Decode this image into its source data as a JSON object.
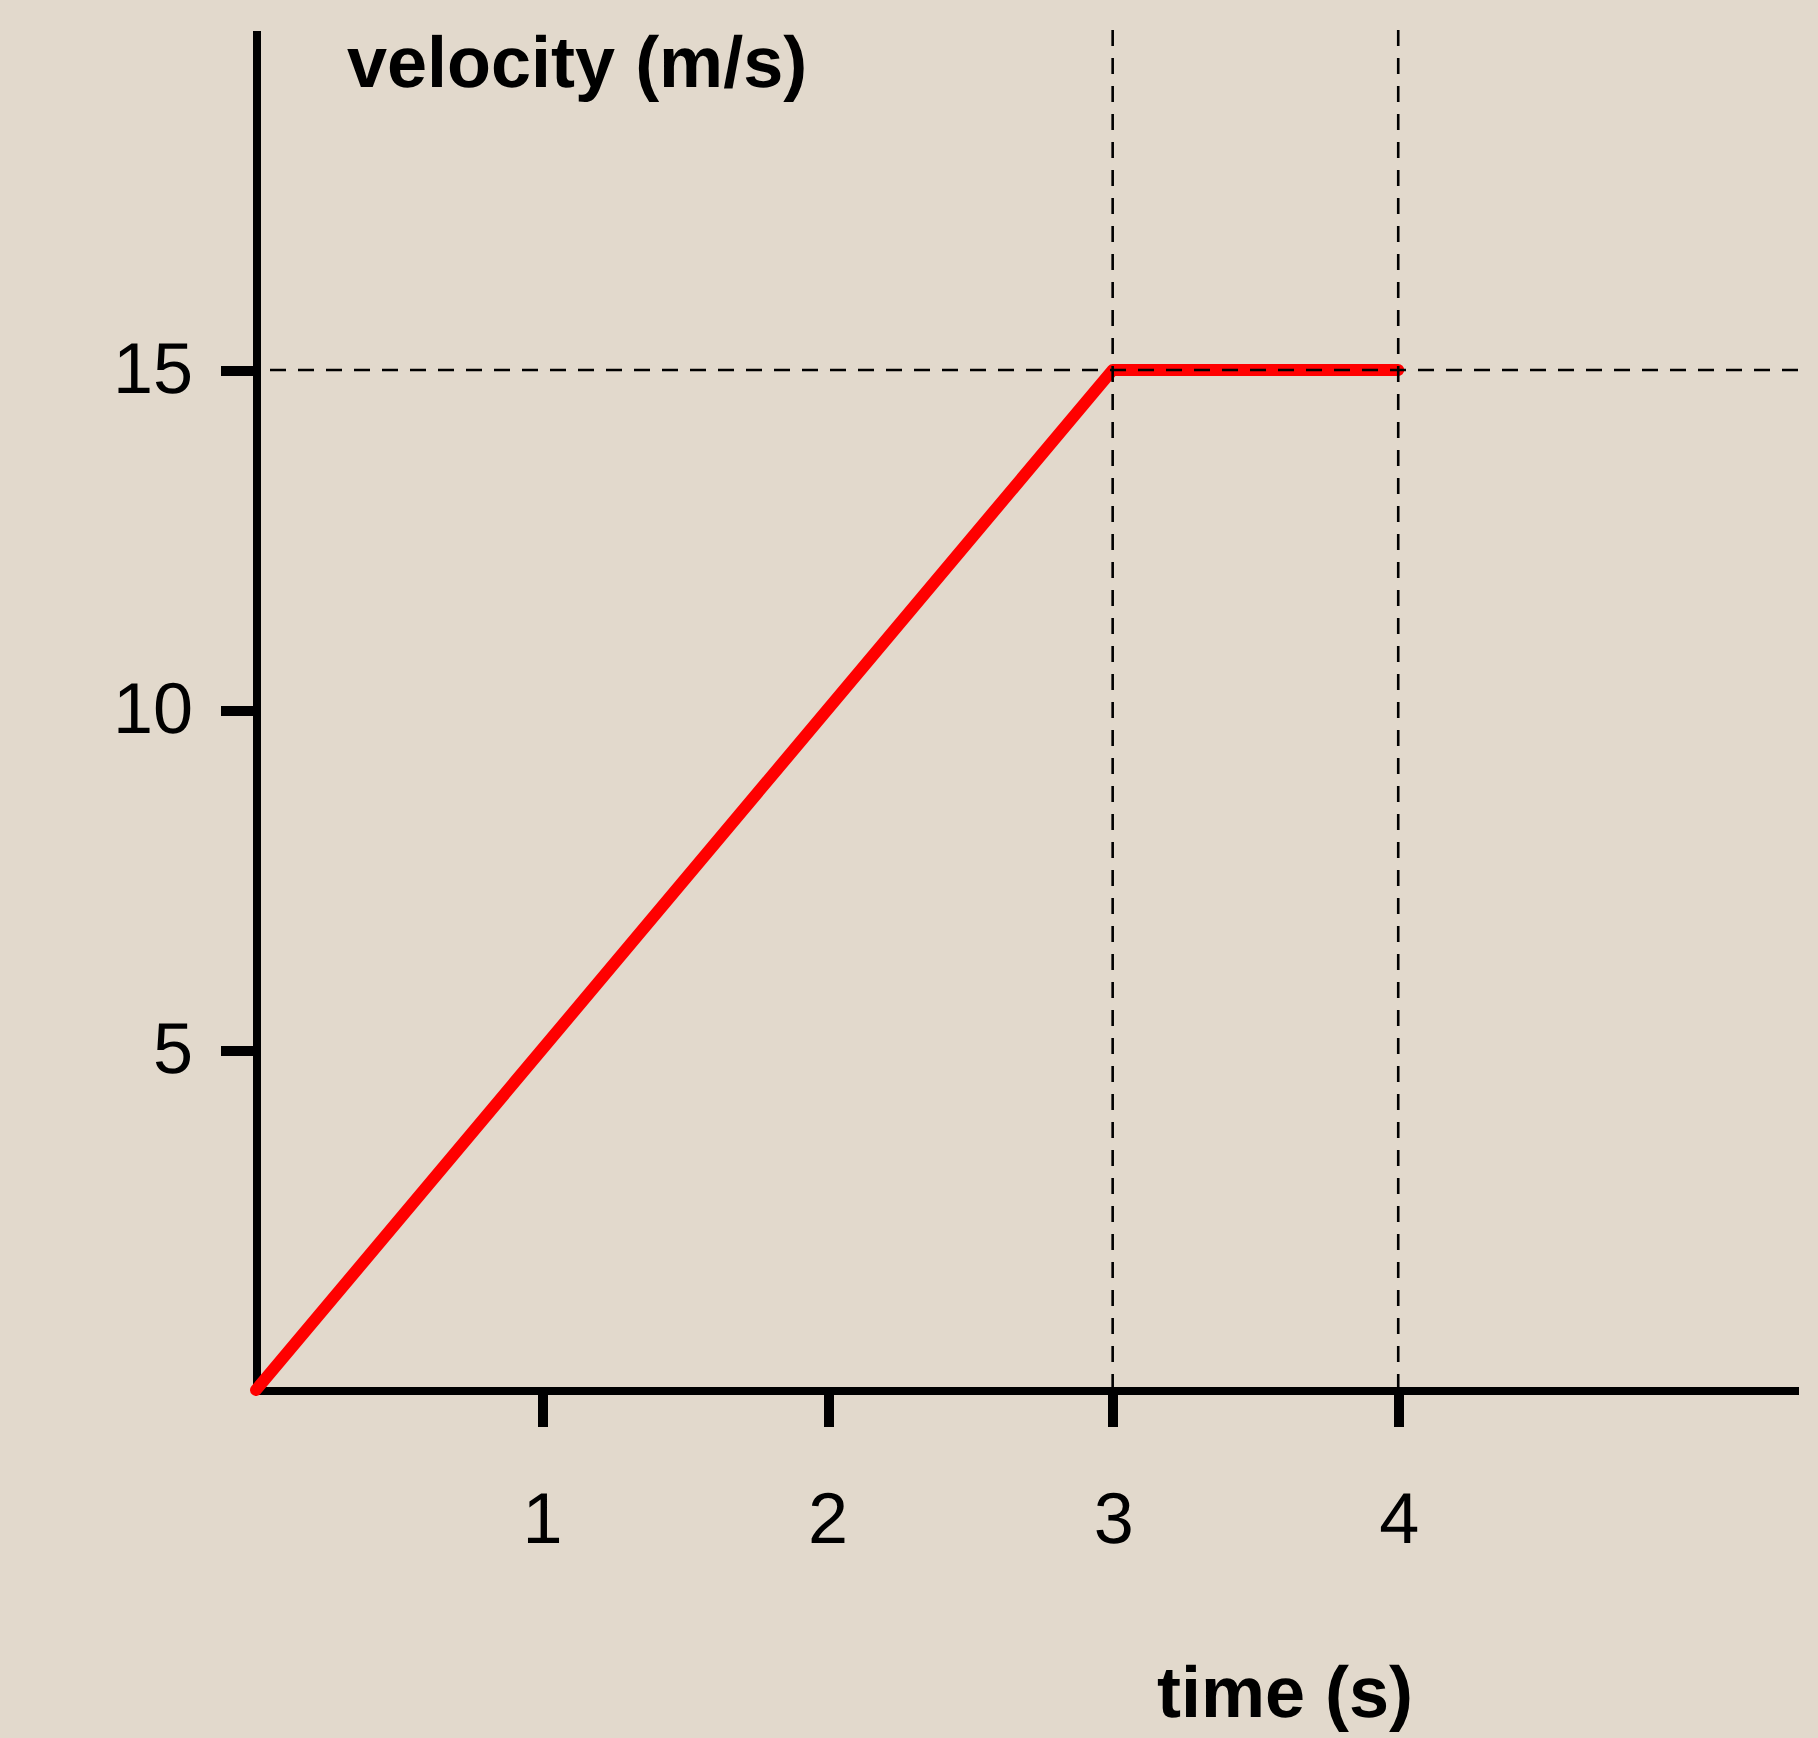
{
  "chart_data": {
    "type": "line",
    "xlabel": "time (s)",
    "ylabel": "velocity (m/s)",
    "x": [
      0,
      3,
      4
    ],
    "series": [
      {
        "color": "#ff0000",
        "values": [
          0,
          15,
          15
        ]
      }
    ],
    "xlim": [
      0,
      5.4
    ],
    "ylim": [
      0,
      20
    ],
    "xticks": [
      1,
      2,
      3,
      4
    ],
    "yticks": [
      5,
      10,
      15
    ],
    "grid": false,
    "line_style": "solid",
    "marker": "none",
    "ref_lines": [
      {
        "axis": "y",
        "value": 15,
        "line_style": "dashed",
        "color": "#000000"
      },
      {
        "axis": "x",
        "value": 3,
        "line_style": "dashed",
        "color": "#000000"
      },
      {
        "axis": "x",
        "value": 4,
        "line_style": "dashed",
        "color": "#000000"
      }
    ]
  }
}
